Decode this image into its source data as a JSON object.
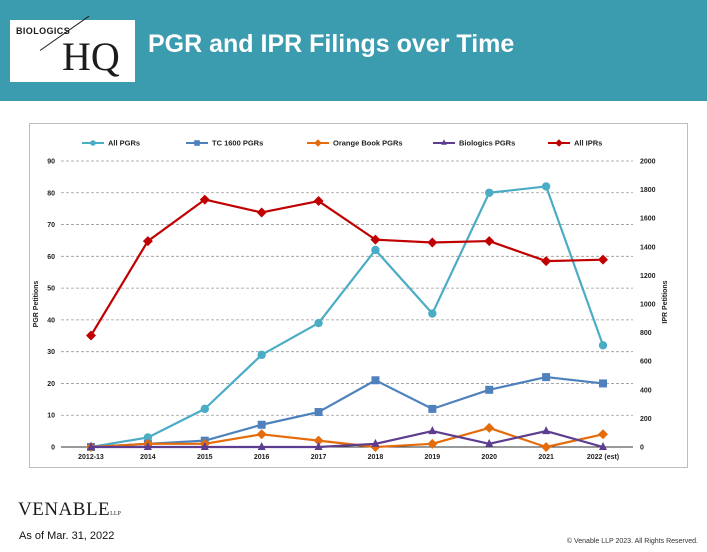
{
  "slide": {
    "title": "PGR and IPR Filings over Time",
    "logo_small": "BIOLOGICS",
    "logo_big": "HQ",
    "footer_brand": "VENABLE",
    "footer_brand_suffix": "LLP",
    "as_of": "As of Mar. 31, 2022",
    "copyright": "© Venable LLP 2023. All Rights Reserved."
  },
  "colors": {
    "header_bg": "#3b9cb0",
    "all_pgrs": "#4bacc6",
    "tc1600": "#4f81bd",
    "orange_book": "#e46c0a",
    "biologics": "#5c3d8f",
    "all_iprs": "#c00000"
  },
  "chart_data": {
    "type": "line",
    "categories": [
      "2012-13",
      "2014",
      "2015",
      "2016",
      "2017",
      "2018",
      "2019",
      "2020",
      "2021",
      "2022 (est)"
    ],
    "series": [
      {
        "name": "All PGRs",
        "axis": "left",
        "color": "#4bacc6",
        "marker": "circle",
        "values": [
          0,
          3,
          12,
          29,
          39,
          62,
          42,
          80,
          82,
          32
        ]
      },
      {
        "name": "TC 1600 PGRs",
        "axis": "left",
        "color": "#4f81bd",
        "marker": "square",
        "values": [
          0,
          1,
          2,
          7,
          11,
          21,
          12,
          18,
          22,
          20
        ]
      },
      {
        "name": "Orange Book PGRs",
        "axis": "left",
        "color": "#e46c0a",
        "marker": "diamond",
        "values": [
          0,
          1,
          1,
          4,
          2,
          0,
          1,
          6,
          0,
          4
        ]
      },
      {
        "name": "Biologics PGRs",
        "axis": "left",
        "color": "#5c3d8f",
        "marker": "triangle",
        "values": [
          0,
          0,
          0,
          0,
          0,
          1,
          5,
          1,
          5,
          0
        ]
      },
      {
        "name": "All IPRs",
        "axis": "right",
        "color": "#c00000",
        "marker": "diamond",
        "values": [
          780,
          1440,
          1730,
          1640,
          1720,
          1450,
          1430,
          1440,
          1300,
          1310
        ]
      }
    ],
    "ylabel": "PGR Petitions",
    "y2label": "IPR Petitions",
    "ylim": [
      0,
      90
    ],
    "y2lim": [
      0,
      2000
    ],
    "yticks": [
      0,
      10,
      20,
      30,
      40,
      50,
      60,
      70,
      80,
      90
    ],
    "y2ticks": [
      0,
      200,
      400,
      600,
      800,
      1000,
      1200,
      1400,
      1600,
      1800,
      2000
    ],
    "grid": "horizontal dashed",
    "legend": "top"
  }
}
